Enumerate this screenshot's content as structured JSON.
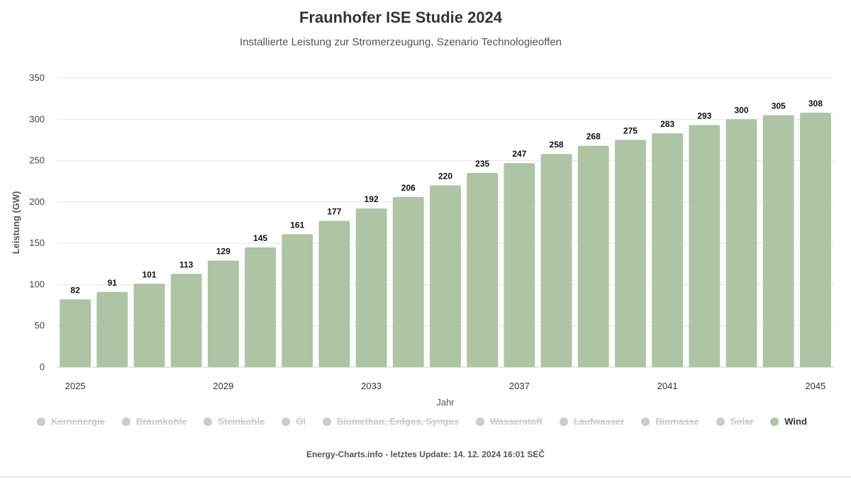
{
  "chart_data": {
    "type": "bar",
    "title": "Fraunhofer ISE Studie 2024",
    "subtitle": "Installierte Leistung zur Stromerzeugung, Szenario Technologieoffen",
    "xlabel": "Jahr",
    "ylabel": "Leistung (GW)",
    "ylim": [
      0,
      350
    ],
    "yticks": [
      0,
      50,
      100,
      150,
      200,
      250,
      300,
      350
    ],
    "xtick_labels": [
      "2025",
      "2029",
      "2033",
      "2037",
      "2041",
      "2045"
    ],
    "categories": [
      "2025",
      "2026",
      "2027",
      "2028",
      "2029",
      "2030",
      "2031",
      "2032",
      "2033",
      "2034",
      "2035",
      "2036",
      "2037",
      "2038",
      "2039",
      "2040",
      "2041",
      "2042",
      "2043",
      "2044",
      "2045"
    ],
    "series": [
      {
        "name": "Wind",
        "color": "#adc5a5",
        "values": [
          82,
          91,
          101,
          113,
          129,
          145,
          161,
          177,
          192,
          206,
          220,
          235,
          247,
          258,
          268,
          275,
          283,
          293,
          300,
          305,
          308
        ]
      }
    ],
    "grid": true,
    "data_labels": true,
    "legend_position": "bottom"
  },
  "legend": [
    {
      "label": "Kernenergie",
      "visible": false
    },
    {
      "label": "Braunkohle",
      "visible": false
    },
    {
      "label": "Steinkohle",
      "visible": false
    },
    {
      "label": "Öl",
      "visible": false
    },
    {
      "label": "Biomethan, Erdgas, Syngas",
      "visible": false
    },
    {
      "label": "Wasserstoff",
      "visible": false
    },
    {
      "label": "Laufwasser",
      "visible": false
    },
    {
      "label": "Biomasse",
      "visible": false
    },
    {
      "label": "Solar",
      "visible": false
    },
    {
      "label": "Wind",
      "visible": true,
      "color": "#adc5a5"
    }
  ],
  "footer": "Energy-Charts.info - letztes Update: 14. 12. 2024 16:01 SEČ"
}
